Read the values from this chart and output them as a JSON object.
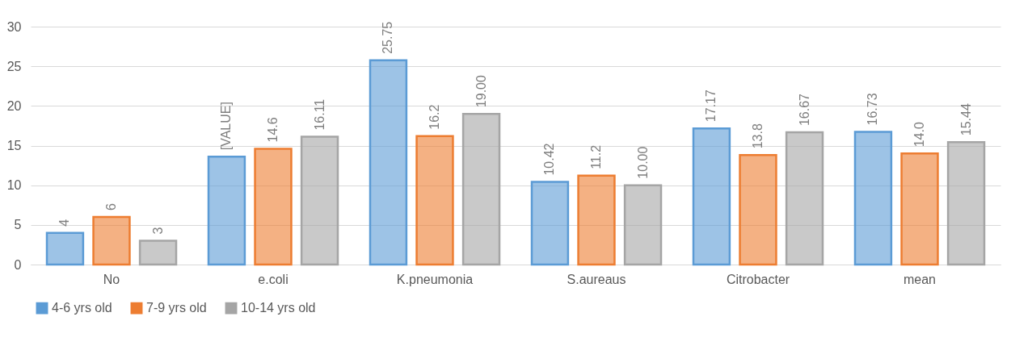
{
  "chart_data": {
    "type": "bar",
    "categories": [
      "No",
      "e.coli",
      "K.pneumonia",
      "S.aureaus",
      "Citrobacter",
      "mean"
    ],
    "series": [
      {
        "name": "4-6 yrs old",
        "color": "#5b9bd5",
        "values": [
          4,
          13.6,
          25.75,
          10.42,
          17.17,
          16.73
        ],
        "value_labels": [
          "4",
          "[VALUE]",
          "25.75",
          "10.42",
          "17.17",
          "16.73"
        ]
      },
      {
        "name": "7-9 yrs old",
        "color": "#ed7d31",
        "values": [
          6,
          14.6,
          16.2,
          11.2,
          13.8,
          14.0
        ],
        "value_labels": [
          "6",
          "14.6",
          "16.2",
          "11.2",
          "13.8",
          "14.0"
        ]
      },
      {
        "name": "10-14 yrs old",
        "color": "#a5a5a5",
        "values": [
          3,
          16.11,
          19.0,
          10.0,
          16.67,
          15.44
        ],
        "value_labels": [
          "3",
          "16.11",
          "19.00",
          "10.00",
          "16.67",
          "15.44"
        ]
      }
    ],
    "ylim": [
      0,
      30
    ],
    "yticks": [
      0,
      5,
      10,
      15,
      20,
      25,
      30
    ],
    "grid": "y",
    "legend": "bottom"
  }
}
